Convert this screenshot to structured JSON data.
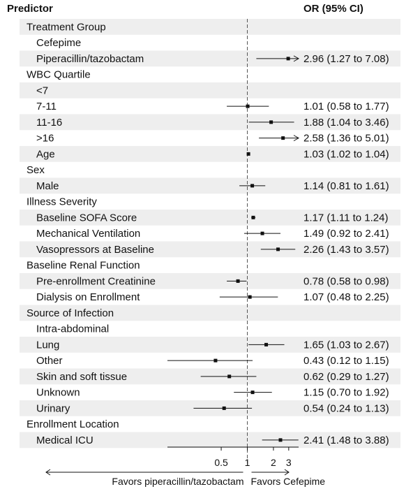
{
  "header": {
    "predictor": "Predictor",
    "or_ci": "OR (95% CI)"
  },
  "colors": {
    "band": "#eeeeee",
    "line": "#111111",
    "ref_line": "#555555"
  },
  "chart_data": {
    "type": "forest",
    "scale": "log",
    "xlim": [
      0.12,
      3.9
    ],
    "reference_value": 1,
    "x_ticks": [
      {
        "value": 0.5,
        "label": "0.5"
      },
      {
        "value": 1,
        "label": "1"
      },
      {
        "value": 2,
        "label": "2"
      },
      {
        "value": 3,
        "label": "3"
      }
    ],
    "favors_left": "Favors piperacillin/tazobactam",
    "favors_right": "Favors Cefepime",
    "rows": [
      {
        "label": "Treatment Group",
        "indent": 0
      },
      {
        "label": "Cefepime",
        "indent": 1
      },
      {
        "label": "Piperacillin/tazobactam",
        "indent": 1,
        "or": 2.96,
        "lo": 1.27,
        "hi": 7.08,
        "text": "2.96 (1.27 to 7.08)"
      },
      {
        "label": "WBC Quartile",
        "indent": 0
      },
      {
        "label": "<7",
        "indent": 1
      },
      {
        "label": "7-11",
        "indent": 1,
        "or": 1.01,
        "lo": 0.58,
        "hi": 1.77,
        "text": "1.01 (0.58 to 1.77)"
      },
      {
        "label": "11-16",
        "indent": 1,
        "or": 1.88,
        "lo": 1.04,
        "hi": 3.46,
        "text": "1.88 (1.04 to 3.46)"
      },
      {
        "label": ">16",
        "indent": 1,
        "or": 2.58,
        "lo": 1.36,
        "hi": 5.01,
        "text": "2.58 (1.36 to 5.01)"
      },
      {
        "label": "Age",
        "indent": 1,
        "or": 1.03,
        "lo": 1.02,
        "hi": 1.04,
        "text": "1.03 (1.02 to 1.04)"
      },
      {
        "label": "Sex",
        "indent": 0
      },
      {
        "label": "Male",
        "indent": 1,
        "or": 1.14,
        "lo": 0.81,
        "hi": 1.61,
        "text": "1.14 (0.81 to 1.61)"
      },
      {
        "label": "Illness Severity",
        "indent": 0
      },
      {
        "label": "Baseline SOFA Score",
        "indent": 1,
        "or": 1.17,
        "lo": 1.11,
        "hi": 1.24,
        "text": "1.17 (1.11 to 1.24)"
      },
      {
        "label": "Mechanical Ventilation",
        "indent": 1,
        "or": 1.49,
        "lo": 0.92,
        "hi": 2.41,
        "text": "1.49 (0.92 to 2.41)"
      },
      {
        "label": "Vasopressors at Baseline",
        "indent": 1,
        "or": 2.26,
        "lo": 1.43,
        "hi": 3.57,
        "text": "2.26 (1.43 to 3.57)"
      },
      {
        "label": "Baseline Renal Function",
        "indent": 0
      },
      {
        "label": "Pre-enrollment Creatinine",
        "indent": 1,
        "or": 0.78,
        "lo": 0.58,
        "hi": 0.98,
        "text": "0.78 (0.58 to 0.98)"
      },
      {
        "label": "Dialysis on Enrollment",
        "indent": 1,
        "or": 1.07,
        "lo": 0.48,
        "hi": 2.25,
        "text": "1.07 (0.48 to 2.25)"
      },
      {
        "label": "Source of Infection",
        "indent": 0
      },
      {
        "label": "Intra-abdominal",
        "indent": 1
      },
      {
        "label": "Lung",
        "indent": 1,
        "or": 1.65,
        "lo": 1.03,
        "hi": 2.67,
        "text": "1.65 (1.03 to 2.67)"
      },
      {
        "label": "Other",
        "indent": 1,
        "or": 0.43,
        "lo": 0.12,
        "hi": 1.15,
        "text": "0.43 (0.12 to 1.15)"
      },
      {
        "label": "Skin and soft tissue",
        "indent": 1,
        "or": 0.62,
        "lo": 0.29,
        "hi": 1.27,
        "text": "0.62 (0.29 to 1.27)"
      },
      {
        "label": "Unknown",
        "indent": 1,
        "or": 1.15,
        "lo": 0.7,
        "hi": 1.92,
        "text": "1.15 (0.70 to 1.92)"
      },
      {
        "label": "Urinary",
        "indent": 1,
        "or": 0.54,
        "lo": 0.24,
        "hi": 1.13,
        "text": "0.54 (0.24 to 1.13)"
      },
      {
        "label": "Enrollment Location",
        "indent": 0
      },
      {
        "label": "Medical ICU",
        "indent": 1,
        "or": 2.41,
        "lo": 1.48,
        "hi": 3.88,
        "text": "2.41 (1.48 to 3.88)"
      }
    ]
  }
}
